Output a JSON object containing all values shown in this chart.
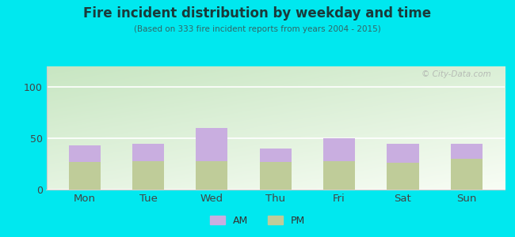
{
  "days": [
    "Mon",
    "Tue",
    "Wed",
    "Thu",
    "Fri",
    "Sat",
    "Sun"
  ],
  "pm_values": [
    27,
    28,
    28,
    27,
    28,
    26,
    30
  ],
  "am_values": [
    16,
    17,
    32,
    13,
    22,
    19,
    15
  ],
  "am_color": "#c9aee0",
  "pm_color": "#bfcc99",
  "title": "Fire incident distribution by weekday and time",
  "subtitle": "(Based on 333 fire incident reports from years 2004 - 2015)",
  "ylim": [
    0,
    120
  ],
  "yticks": [
    0,
    50,
    100
  ],
  "bar_width": 0.5,
  "bg_outer": "#00e8ef",
  "watermark": "© City-Data.com",
  "title_color": "#1a3a3a",
  "subtitle_color": "#336666",
  "tick_color": "#444444"
}
